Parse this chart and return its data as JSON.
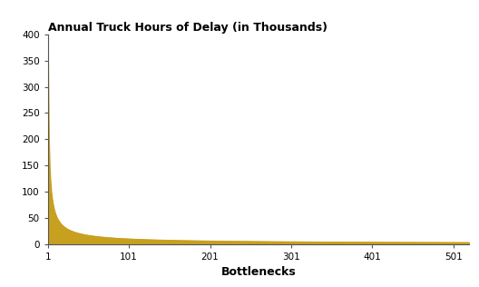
{
  "title": "Annual Truck Hours of Delay (in Thousands)",
  "xlabel": "Bottlenecks",
  "xlim": [
    1,
    521
  ],
  "ylim": [
    0,
    400
  ],
  "yticks": [
    0,
    50,
    100,
    150,
    200,
    250,
    300,
    350,
    400
  ],
  "xticks": [
    1,
    101,
    201,
    301,
    401,
    501
  ],
  "xticklabels": [
    "1",
    "101",
    "201",
    "301",
    "401",
    "501"
  ],
  "fill_color": "#C8A020",
  "line_color": "#C8A020",
  "bg_color": "#FFFFFF",
  "n_points": 521,
  "A": 350,
  "b": 0.78
}
